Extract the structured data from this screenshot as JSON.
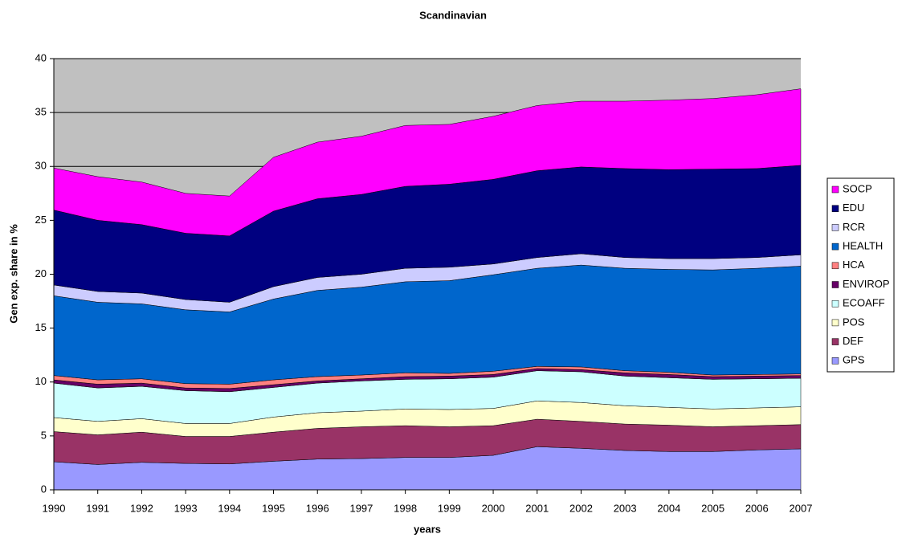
{
  "chart_data": {
    "type": "stacked_area",
    "title": "Scandinavian",
    "xlabel": "years",
    "ylabel": "Gen exp. share in %",
    "x": [
      1990,
      1991,
      1992,
      1993,
      1994,
      1995,
      1996,
      1997,
      1998,
      1999,
      2000,
      2001,
      2002,
      2003,
      2004,
      2005,
      2006,
      2007
    ],
    "xlim": [
      1990,
      2007
    ],
    "ylim": [
      0,
      40
    ],
    "yticks": [
      0,
      5,
      10,
      15,
      20,
      25,
      30,
      35,
      40
    ],
    "grid": true,
    "legend": "right",
    "series": [
      {
        "name": "GPS",
        "color": "#9999ff",
        "values": [
          2.6,
          2.35,
          2.55,
          2.45,
          2.4,
          2.65,
          2.85,
          2.9,
          3.0,
          3.0,
          3.2,
          4.0,
          3.85,
          3.65,
          3.55,
          3.55,
          3.7,
          3.8
        ]
      },
      {
        "name": "DEF",
        "color": "#993366",
        "values": [
          2.8,
          2.75,
          2.8,
          2.5,
          2.55,
          2.7,
          2.85,
          2.95,
          2.95,
          2.85,
          2.75,
          2.55,
          2.5,
          2.45,
          2.45,
          2.3,
          2.25,
          2.25
        ]
      },
      {
        "name": "POS",
        "color": "#ffffcc",
        "values": [
          1.3,
          1.25,
          1.25,
          1.2,
          1.2,
          1.4,
          1.45,
          1.45,
          1.55,
          1.6,
          1.6,
          1.7,
          1.75,
          1.7,
          1.65,
          1.65,
          1.65,
          1.65
        ]
      },
      {
        "name": "ECOAFF",
        "color": "#ccffff",
        "values": [
          3.2,
          3.1,
          3.0,
          3.05,
          2.95,
          2.75,
          2.75,
          2.8,
          2.75,
          2.85,
          2.9,
          2.8,
          2.85,
          2.75,
          2.75,
          2.75,
          2.7,
          2.65
        ]
      },
      {
        "name": "ENVIROP",
        "color": "#660066",
        "values": [
          0.3,
          0.35,
          0.3,
          0.25,
          0.3,
          0.25,
          0.2,
          0.2,
          0.25,
          0.25,
          0.25,
          0.2,
          0.2,
          0.3,
          0.3,
          0.25,
          0.25,
          0.25
        ]
      },
      {
        "name": "HCA",
        "color": "#ff8080",
        "values": [
          0.4,
          0.4,
          0.4,
          0.4,
          0.4,
          0.45,
          0.4,
          0.35,
          0.35,
          0.25,
          0.3,
          0.2,
          0.25,
          0.2,
          0.2,
          0.15,
          0.15,
          0.15
        ]
      },
      {
        "name": "HEALTH",
        "color": "#0066cc",
        "values": [
          7.4,
          7.2,
          6.95,
          6.85,
          6.7,
          7.5,
          8.0,
          8.15,
          8.45,
          8.6,
          8.95,
          9.1,
          9.45,
          9.5,
          9.55,
          9.75,
          9.85,
          10.0
        ]
      },
      {
        "name": "RCR",
        "color": "#ccccff",
        "values": [
          1.0,
          1.0,
          1.0,
          0.95,
          0.9,
          1.15,
          1.2,
          1.2,
          1.25,
          1.25,
          1.0,
          1.0,
          1.05,
          1.0,
          1.0,
          1.05,
          1.0,
          1.05
        ]
      },
      {
        "name": "EDU",
        "color": "#000080",
        "values": [
          6.95,
          6.6,
          6.35,
          6.15,
          6.15,
          7.0,
          7.3,
          7.4,
          7.6,
          7.7,
          7.85,
          8.05,
          8.05,
          8.25,
          8.25,
          8.3,
          8.25,
          8.3
        ]
      },
      {
        "name": "SOCP",
        "color": "#ff00ff",
        "values": [
          3.9,
          4.05,
          3.95,
          3.7,
          3.7,
          5.0,
          5.25,
          5.4,
          5.65,
          5.55,
          5.85,
          6.05,
          6.1,
          6.25,
          6.45,
          6.55,
          6.85,
          7.1
        ]
      }
    ]
  }
}
